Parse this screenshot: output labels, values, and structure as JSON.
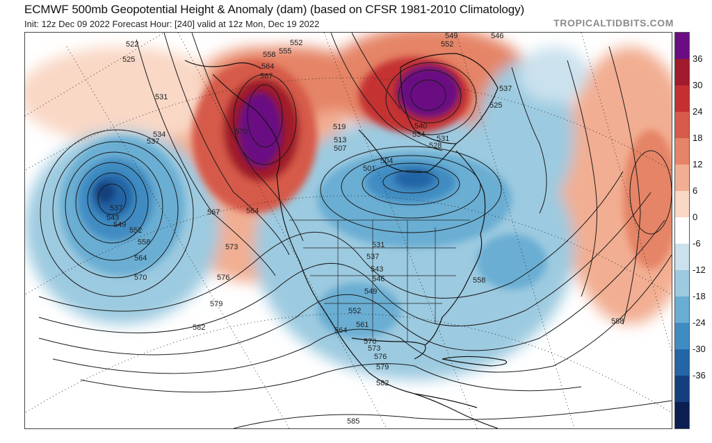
{
  "header": {
    "title": "ECMWF 500mb Geopotential Height & Anomaly (dam) (based on CFSR 1981-2010 Climatology)",
    "subtitle": "Init: 12z Dec 09 2022   Forecast Hour: [240]   valid at 12z Mon, Dec 19 2022",
    "brand": "TROPICALTIDBITS.COM"
  },
  "colorbar": {
    "ticks": [
      "36",
      "30",
      "24",
      "18",
      "12",
      "6",
      "0",
      "-6",
      "-12",
      "-18",
      "-24",
      "-30",
      "-36"
    ],
    "colors": [
      "#6a0d83",
      "#a11b2c",
      "#c43030",
      "#d65a4a",
      "#e58466",
      "#f2ae92",
      "#f9d8c6",
      "#ffffff",
      "#cbe2ee",
      "#9ccae0",
      "#6aaed3",
      "#3f8cc2",
      "#2465a6",
      "#143f7d",
      "#0a1e52"
    ]
  },
  "map": {
    "height_contour_labels": [
      "522",
      "525",
      "531",
      "534",
      "537",
      "537",
      "543",
      "549",
      "552",
      "558",
      "564",
      "570",
      "567",
      "564",
      "573",
      "576",
      "579",
      "582",
      "585",
      "588",
      "552",
      "555",
      "558",
      "564",
      "567",
      "570",
      "546",
      "549",
      "552",
      "537",
      "528",
      "525",
      "531",
      "534",
      "540",
      "519",
      "513",
      "507",
      "501",
      "504",
      "531",
      "537",
      "543",
      "546",
      "549",
      "552",
      "558",
      "561",
      "564",
      "570",
      "573",
      "576",
      "579",
      "582"
    ]
  }
}
